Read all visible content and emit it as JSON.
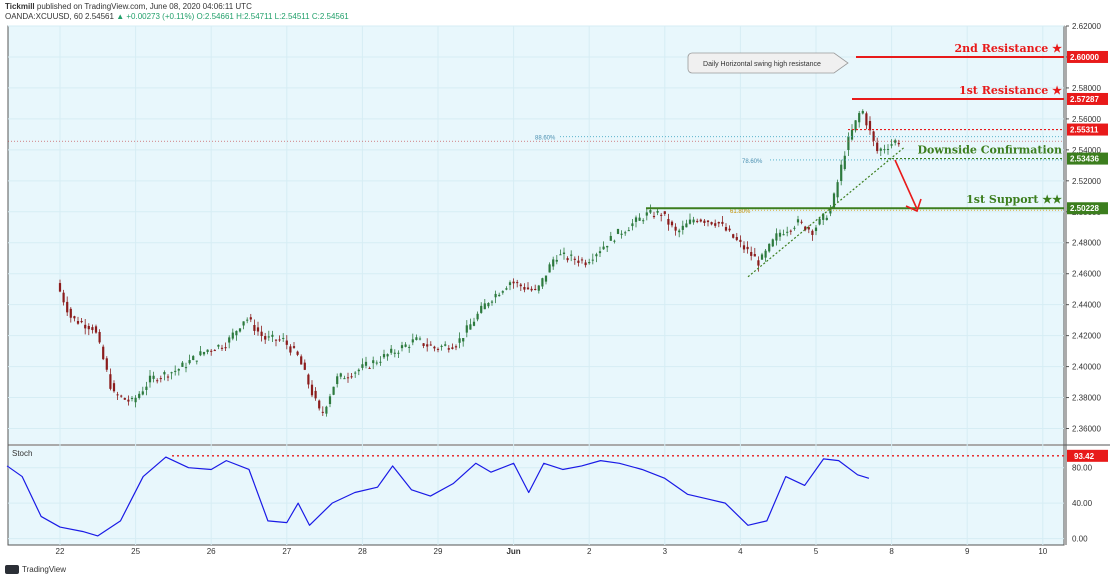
{
  "header": {
    "publisher": "Tickmill",
    "published": "published on TradingView.com, June 08, 2020 04:06:11 UTC",
    "symbol": "OANDA:XCUUSD, 60",
    "last": "2.54561",
    "change": "+0.00273 (+0.11%)",
    "ohlc": "O:2.54661 H:2.54711 L:2.54511 C:2.54561"
  },
  "footer": {
    "brand": "TradingView"
  },
  "colors": {
    "panel_bg": "#e8f7fc",
    "candle_up": "#2d7a3e",
    "candle_down": "#8b1c1c",
    "resistance": "#e81a1a",
    "support": "#3c7e1e",
    "stoch": "#1a1ae6",
    "dotted": "#45a9c4"
  },
  "chart_data": [
    {
      "type": "candlestick",
      "title": "OANDA:XCUUSD, 60",
      "x_ticks": [
        "22",
        "25",
        "26",
        "27",
        "28",
        "29",
        "Jun",
        "2",
        "3",
        "4",
        "5",
        "8",
        "9",
        "10"
      ],
      "ylim": [
        2.35,
        2.62
      ],
      "y_ticks": [
        "2.62000",
        "2.60000",
        "2.58000",
        "2.56000",
        "2.54000",
        "2.52000",
        "2.50000",
        "2.48000",
        "2.46000",
        "2.44000",
        "2.42000",
        "2.40000",
        "2.38000",
        "2.36000"
      ],
      "price_path": [
        {
          "x": 0,
          "y": 2.454
        },
        {
          "x": 0.2,
          "y": 2.431
        },
        {
          "x": 0.5,
          "y": 2.425
        },
        {
          "x": 0.75,
          "y": 2.382
        },
        {
          "x": 1.0,
          "y": 2.377
        },
        {
          "x": 1.25,
          "y": 2.392
        },
        {
          "x": 1.6,
          "y": 2.398
        },
        {
          "x": 2.0,
          "y": 2.411
        },
        {
          "x": 2.25,
          "y": 2.415
        },
        {
          "x": 2.5,
          "y": 2.432
        },
        {
          "x": 2.75,
          "y": 2.418
        },
        {
          "x": 3.0,
          "y": 2.417
        },
        {
          "x": 3.2,
          "y": 2.406
        },
        {
          "x": 3.5,
          "y": 2.368
        },
        {
          "x": 3.7,
          "y": 2.392
        },
        {
          "x": 4.0,
          "y": 2.398
        },
        {
          "x": 4.4,
          "y": 2.408
        },
        {
          "x": 4.75,
          "y": 2.417
        },
        {
          "x": 5.0,
          "y": 2.412
        },
        {
          "x": 5.3,
          "y": 2.415
        },
        {
          "x": 5.7,
          "y": 2.442
        },
        {
          "x": 6.0,
          "y": 2.455
        },
        {
          "x": 6.35,
          "y": 2.448
        },
        {
          "x": 6.6,
          "y": 2.472
        },
        {
          "x": 7.0,
          "y": 2.468
        },
        {
          "x": 7.4,
          "y": 2.485
        },
        {
          "x": 7.8,
          "y": 2.498
        },
        {
          "x": 8.0,
          "y": 2.499
        },
        {
          "x": 8.2,
          "y": 2.486
        },
        {
          "x": 8.45,
          "y": 2.496
        },
        {
          "x": 8.75,
          "y": 2.493
        },
        {
          "x": 9.0,
          "y": 2.481
        },
        {
          "x": 9.3,
          "y": 2.467
        },
        {
          "x": 9.55,
          "y": 2.486
        },
        {
          "x": 9.8,
          "y": 2.493
        },
        {
          "x": 10.0,
          "y": 2.488
        },
        {
          "x": 10.25,
          "y": 2.502
        },
        {
          "x": 10.45,
          "y": 2.543
        },
        {
          "x": 10.65,
          "y": 2.567
        },
        {
          "x": 10.85,
          "y": 2.539
        },
        {
          "x": 11.1,
          "y": 2.5456
        }
      ],
      "levels": [
        {
          "name": "2nd Resistance ★",
          "value": 2.6,
          "label": "2.60000",
          "kind": "resistance"
        },
        {
          "name": "1st Resistance ★",
          "value": 2.57287,
          "label": "2.57287",
          "kind": "resistance"
        },
        {
          "name": "Downside Confirmation",
          "value": 2.53436,
          "label": "2.53436",
          "kind": "support"
        },
        {
          "name": "1st Support ★★",
          "value": 2.50228,
          "label": "2.50228",
          "kind": "support"
        }
      ],
      "extra_price_labels": [
        {
          "value": 2.55311,
          "label": "2.55311"
        }
      ],
      "fib_labels": [
        {
          "label": "88.60%",
          "value": 2.5485
        },
        {
          "label": "78.60%",
          "value": 2.5335
        },
        {
          "label": "61.80%",
          "value": 2.501
        }
      ],
      "annotations": [
        {
          "text": "Daily Horizontal swing high resistance",
          "target": "2nd Resistance"
        }
      ]
    },
    {
      "type": "line",
      "title": "Stoch",
      "ylim": [
        -5,
        100
      ],
      "y_ticks": [
        "80.00",
        "40.00",
        "0.00"
      ],
      "level": {
        "value": 93.42,
        "label": "93.42"
      },
      "series": [
        {
          "name": "Stoch",
          "values": [
            {
              "x": 0,
              "y": 82
            },
            {
              "x": 0.2,
              "y": 70
            },
            {
              "x": 0.45,
              "y": 25
            },
            {
              "x": 0.7,
              "y": 13
            },
            {
              "x": 1.0,
              "y": 8
            },
            {
              "x": 1.2,
              "y": 3
            },
            {
              "x": 1.5,
              "y": 20
            },
            {
              "x": 1.8,
              "y": 70
            },
            {
              "x": 2.1,
              "y": 92
            },
            {
              "x": 2.4,
              "y": 80
            },
            {
              "x": 2.7,
              "y": 78
            },
            {
              "x": 2.9,
              "y": 88
            },
            {
              "x": 3.2,
              "y": 78
            },
            {
              "x": 3.45,
              "y": 20
            },
            {
              "x": 3.7,
              "y": 18
            },
            {
              "x": 3.85,
              "y": 40
            },
            {
              "x": 4.0,
              "y": 15
            },
            {
              "x": 4.3,
              "y": 40
            },
            {
              "x": 4.6,
              "y": 52
            },
            {
              "x": 4.9,
              "y": 58
            },
            {
              "x": 5.1,
              "y": 82
            },
            {
              "x": 5.35,
              "y": 55
            },
            {
              "x": 5.6,
              "y": 48
            },
            {
              "x": 5.9,
              "y": 62
            },
            {
              "x": 6.2,
              "y": 85
            },
            {
              "x": 6.4,
              "y": 75
            },
            {
              "x": 6.7,
              "y": 85
            },
            {
              "x": 6.9,
              "y": 52
            },
            {
              "x": 7.1,
              "y": 85
            },
            {
              "x": 7.35,
              "y": 78
            },
            {
              "x": 7.6,
              "y": 82
            },
            {
              "x": 7.85,
              "y": 88
            },
            {
              "x": 8.1,
              "y": 85
            },
            {
              "x": 8.4,
              "y": 78
            },
            {
              "x": 8.7,
              "y": 68
            },
            {
              "x": 9.0,
              "y": 50
            },
            {
              "x": 9.25,
              "y": 45
            },
            {
              "x": 9.5,
              "y": 40
            },
            {
              "x": 9.8,
              "y": 15
            },
            {
              "x": 10.05,
              "y": 20
            },
            {
              "x": 10.3,
              "y": 70
            },
            {
              "x": 10.55,
              "y": 60
            },
            {
              "x": 10.8,
              "y": 90
            },
            {
              "x": 11.0,
              "y": 88
            },
            {
              "x": 11.25,
              "y": 72
            },
            {
              "x": 11.4,
              "y": 68
            }
          ]
        }
      ]
    }
  ]
}
